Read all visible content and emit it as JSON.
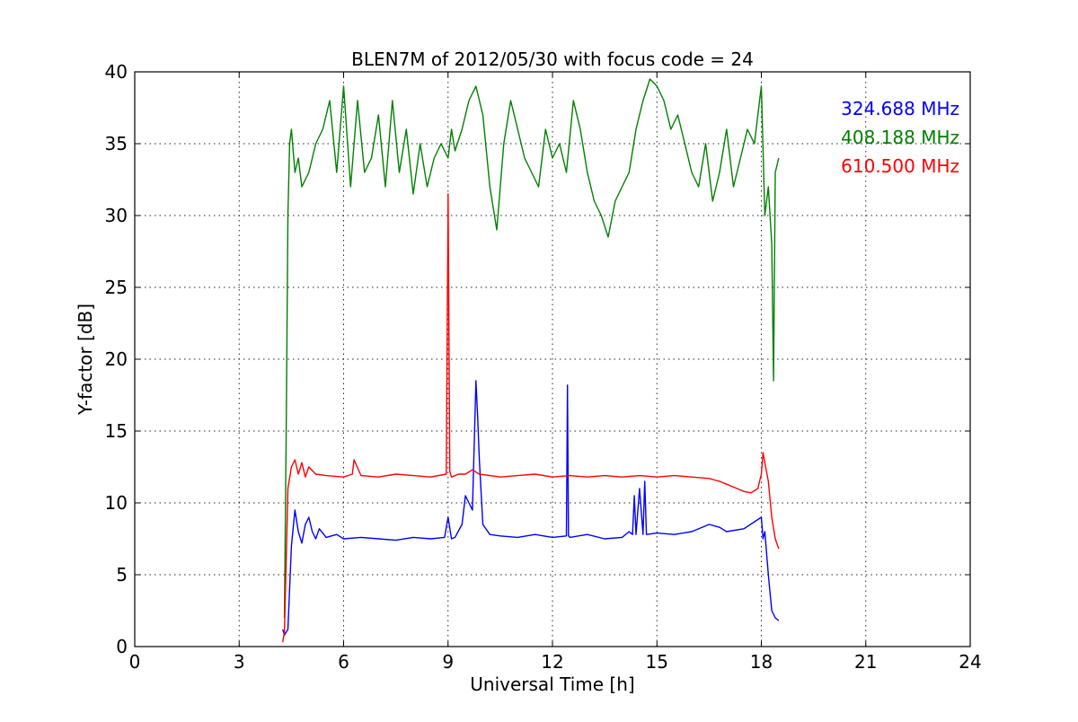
{
  "chart_data": {
    "type": "line",
    "title": "BLEN7M of 2012/05/30 with focus code = 24",
    "xlabel": "Universal Time [h]",
    "ylabel": "Y-factor [dB]",
    "xlim": [
      0,
      24
    ],
    "ylim": [
      0,
      40
    ],
    "xticks": [
      0,
      3,
      6,
      9,
      12,
      15,
      18,
      21,
      24
    ],
    "xtick_labels": [
      "0",
      "3",
      "6",
      "9",
      "12",
      "15",
      "18",
      "21",
      "24"
    ],
    "yticks": [
      0,
      5,
      10,
      15,
      20,
      25,
      30,
      35,
      40
    ],
    "ytick_labels": [
      "0",
      "5",
      "10",
      "15",
      "20",
      "25",
      "30",
      "35",
      "40"
    ],
    "grid": true,
    "legend_position": "top-right",
    "series": [
      {
        "name": "324.688 MHz",
        "color": "#0000ff",
        "x": [
          4.25,
          4.3,
          4.4,
          4.5,
          4.6,
          4.7,
          4.8,
          4.9,
          5.0,
          5.1,
          5.2,
          5.3,
          5.5,
          5.8,
          6.0,
          6.5,
          7.0,
          7.5,
          8.0,
          8.5,
          8.9,
          9.0,
          9.1,
          9.2,
          9.4,
          9.5,
          9.6,
          9.7,
          9.8,
          9.85,
          9.9,
          10.0,
          10.2,
          10.5,
          11.0,
          11.5,
          12.0,
          12.4,
          12.43,
          12.46,
          12.5,
          13.0,
          13.5,
          14.0,
          14.2,
          14.3,
          14.35,
          14.4,
          14.5,
          14.6,
          14.65,
          14.7,
          15.0,
          15.5,
          16.0,
          16.5,
          16.8,
          17.0,
          17.5,
          18.0,
          18.05,
          18.1,
          18.2,
          18.3,
          18.4,
          18.5
        ],
        "values": [
          1.2,
          0.8,
          1.2,
          7.0,
          9.5,
          8.0,
          7.2,
          8.5,
          9.0,
          8.0,
          7.5,
          8.2,
          7.6,
          7.8,
          7.5,
          7.6,
          7.5,
          7.4,
          7.6,
          7.5,
          7.6,
          9.0,
          7.5,
          7.6,
          8.5,
          10.5,
          10.0,
          9.5,
          18.5,
          16.0,
          13.0,
          8.5,
          7.8,
          7.7,
          7.6,
          7.8,
          7.6,
          7.7,
          18.2,
          7.7,
          7.6,
          7.8,
          7.5,
          7.6,
          8.0,
          7.8,
          10.5,
          7.8,
          11.0,
          7.8,
          11.5,
          7.8,
          7.9,
          7.8,
          8.0,
          8.5,
          8.3,
          8.0,
          8.2,
          9.0,
          7.5,
          8.0,
          5.0,
          2.5,
          2.0,
          1.8
        ]
      },
      {
        "name": "408.188 MHz",
        "color": "#008000",
        "x": [
          4.3,
          4.35,
          4.4,
          4.45,
          4.5,
          4.6,
          4.7,
          4.8,
          5.0,
          5.2,
          5.4,
          5.6,
          5.8,
          6.0,
          6.2,
          6.4,
          6.6,
          6.8,
          7.0,
          7.2,
          7.4,
          7.6,
          7.8,
          8.0,
          8.2,
          8.4,
          8.6,
          8.8,
          9.0,
          9.1,
          9.2,
          9.4,
          9.6,
          9.8,
          10.0,
          10.2,
          10.4,
          10.6,
          10.8,
          11.0,
          11.2,
          11.4,
          11.6,
          11.8,
          12.0,
          12.2,
          12.4,
          12.6,
          12.8,
          13.0,
          13.2,
          13.4,
          13.6,
          13.8,
          14.0,
          14.2,
          14.4,
          14.6,
          14.8,
          15.0,
          15.2,
          15.4,
          15.6,
          15.8,
          16.0,
          16.2,
          16.4,
          16.6,
          16.8,
          17.0,
          17.2,
          17.4,
          17.6,
          17.8,
          18.0,
          18.1,
          18.2,
          18.3,
          18.35,
          18.4,
          18.5
        ],
        "values": [
          2.0,
          15.0,
          30.0,
          35.0,
          36.0,
          33.0,
          34.0,
          32.0,
          33.0,
          35.0,
          36.0,
          38.0,
          33.0,
          39.0,
          32.0,
          38.0,
          33.0,
          34.0,
          37.0,
          32.0,
          38.0,
          33.0,
          36.0,
          31.5,
          35.0,
          32.0,
          34.0,
          35.0,
          34.0,
          36.0,
          34.5,
          36.0,
          38.0,
          39.0,
          37.0,
          32.0,
          29.0,
          35.0,
          38.0,
          36.0,
          34.0,
          33.0,
          32.0,
          36.0,
          34.0,
          35.0,
          33.0,
          38.0,
          36.0,
          33.0,
          31.0,
          30.0,
          28.5,
          31.0,
          32.0,
          33.0,
          36.0,
          38.0,
          39.5,
          39.0,
          38.0,
          36.0,
          37.0,
          35.0,
          33.0,
          32.0,
          35.0,
          31.0,
          33.0,
          36.0,
          32.0,
          34.0,
          36.0,
          35.0,
          39.0,
          30.0,
          32.0,
          28.0,
          18.5,
          33.0,
          34.0
        ]
      },
      {
        "name": "610.500 MHz",
        "color": "#ff0000",
        "x": [
          4.25,
          4.3,
          4.35,
          4.4,
          4.5,
          4.6,
          4.7,
          4.8,
          4.9,
          5.0,
          5.2,
          5.5,
          6.0,
          6.25,
          6.3,
          6.5,
          7.0,
          7.5,
          8.0,
          8.5,
          8.95,
          9.0,
          9.05,
          9.1,
          9.3,
          9.5,
          9.7,
          9.9,
          10.2,
          10.5,
          11.0,
          11.5,
          12.0,
          12.5,
          13.0,
          13.5,
          14.0,
          14.5,
          15.0,
          15.5,
          16.0,
          16.5,
          16.8,
          17.0,
          17.3,
          17.5,
          17.7,
          17.9,
          18.0,
          18.05,
          18.1,
          18.2,
          18.3,
          18.4,
          18.5
        ],
        "values": [
          0.3,
          1.0,
          6.0,
          11.0,
          12.5,
          13.0,
          12.0,
          12.8,
          11.8,
          12.5,
          12.0,
          11.9,
          11.8,
          12.0,
          13.0,
          11.9,
          11.8,
          12.0,
          11.9,
          11.8,
          12.0,
          31.5,
          12.2,
          11.8,
          12.0,
          12.0,
          12.3,
          12.0,
          11.9,
          11.8,
          11.9,
          12.0,
          11.8,
          11.9,
          11.8,
          11.9,
          11.8,
          11.9,
          11.8,
          11.9,
          11.8,
          11.7,
          11.5,
          11.3,
          11.0,
          10.8,
          10.7,
          11.0,
          12.0,
          13.5,
          12.8,
          11.5,
          9.0,
          7.5,
          6.8
        ]
      }
    ]
  }
}
